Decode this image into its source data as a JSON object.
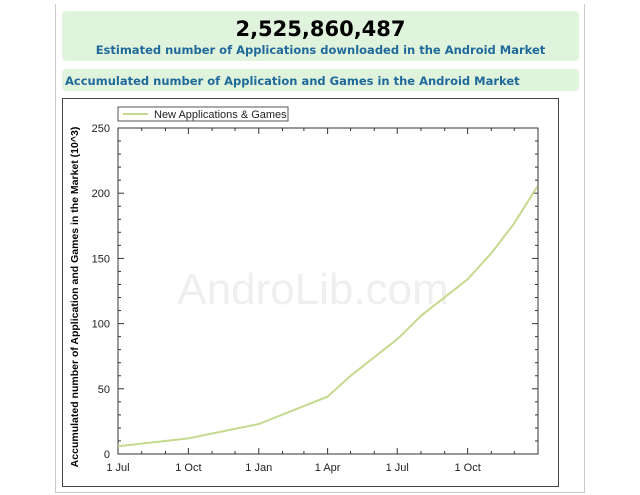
{
  "header": {
    "count": "2,525,860,487",
    "subtitle": "Estimated number of Applications downloaded in the Android Market"
  },
  "section": {
    "title": "Accumulated number of Application and Games in the Android Market"
  },
  "watermark": "AndroLib.com",
  "chart_data": {
    "type": "line",
    "ylabel": "Accumulated number of Application and Games in the Market (10^3)",
    "xlabel": "",
    "ylim": [
      0,
      250
    ],
    "yticks": [
      0,
      50,
      100,
      150,
      200,
      250
    ],
    "xtick_labels": [
      "1 Jul",
      "1 Oct",
      "1 Jan",
      "1 Apr",
      "1 Jul",
      "1 Oct"
    ],
    "legend": "top-left",
    "grid": false,
    "colors": {
      "line": "#c5d98f"
    },
    "series": [
      {
        "name": "New Applications & Games",
        "x": [
          "2009-07-01",
          "2009-10-01",
          "2010-01-01",
          "2010-04-01",
          "2010-05-01",
          "2010-07-01",
          "2010-08-01",
          "2010-10-01",
          "2010-11-01",
          "2010-12-01",
          "2010-12-31"
        ],
        "values": [
          6,
          12,
          23,
          44,
          60,
          88,
          106,
          134,
          154,
          177,
          205
        ]
      }
    ]
  }
}
